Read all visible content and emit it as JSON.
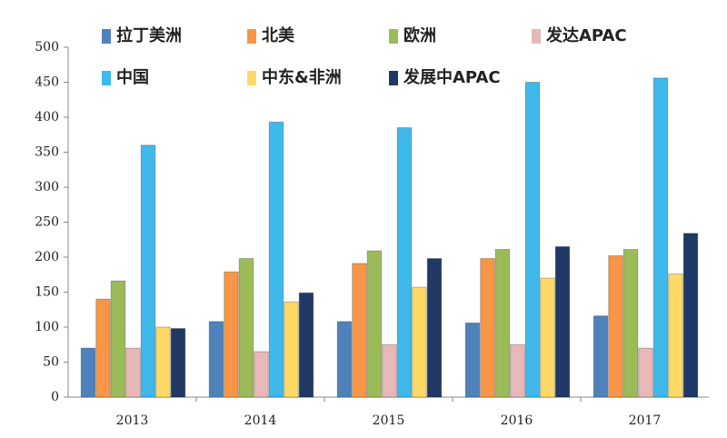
{
  "chart_data": {
    "type": "bar",
    "categories": [
      "2013",
      "2014",
      "2015",
      "2016",
      "2017"
    ],
    "series": [
      {
        "name": "拉丁美洲",
        "color": "#4f81bd",
        "values": [
          70,
          108,
          108,
          106,
          116
        ]
      },
      {
        "name": "北美",
        "color": "#f79646",
        "values": [
          140,
          179,
          191,
          198,
          202
        ]
      },
      {
        "name": "欧洲",
        "color": "#9bbb59",
        "values": [
          166,
          198,
          209,
          211,
          211
        ]
      },
      {
        "name": "发达APAC",
        "color": "#e6b9b8",
        "values": [
          70,
          65,
          75,
          75,
          70
        ]
      },
      {
        "name": "中国",
        "color": "#3fb8ec",
        "values": [
          360,
          393,
          385,
          450,
          456
        ]
      },
      {
        "name": "中东&非洲",
        "color": "#ffd966",
        "values": [
          100,
          136,
          157,
          170,
          176
        ]
      },
      {
        "name": "发展中APAC",
        "color": "#1f3864",
        "values": [
          98,
          149,
          198,
          215,
          234
        ]
      }
    ],
    "ylim": [
      0,
      500
    ],
    "yticks": [
      0,
      50,
      100,
      150,
      200,
      250,
      300,
      350,
      400,
      450,
      500
    ]
  }
}
